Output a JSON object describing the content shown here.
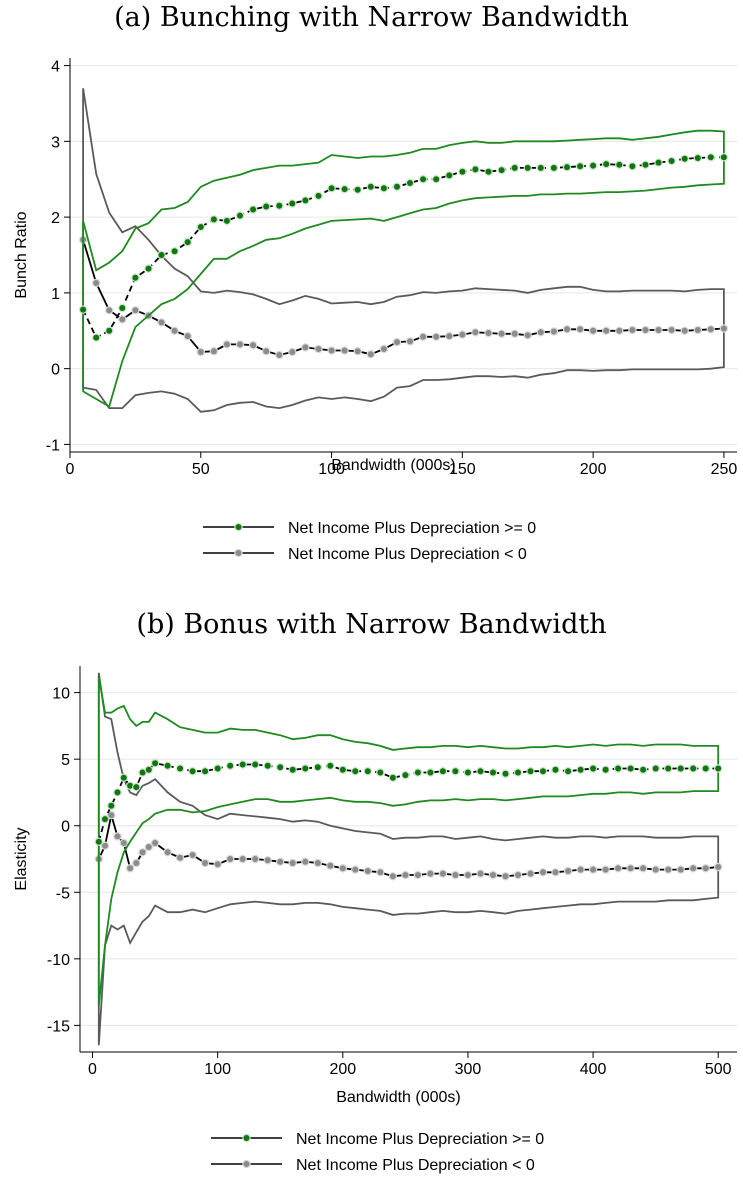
{
  "chart_data": [
    {
      "type": "line",
      "title": "(a) Bunching with Narrow Bandwidth",
      "xlabel": "Bandwidth (000s)",
      "ylabel": "Bunch Ratio",
      "xlim": [
        0,
        255
      ],
      "ylim": [
        -1.1,
        4.1
      ],
      "xticks": [
        "0",
        "50",
        "100",
        "150",
        "200",
        "250"
      ],
      "xtick_values": [
        0,
        50,
        100,
        150,
        200,
        250
      ],
      "yticks": [
        "-1",
        "0",
        "1",
        "2",
        "3",
        "4"
      ],
      "ytick_values": [
        -1,
        0,
        1,
        2,
        3,
        4
      ],
      "grid": true,
      "legend_position": "bottom",
      "colors": {
        "pos": "#1a7a1a",
        "neg": "#595959",
        "pos_marker": "#137413",
        "neg_marker": "#8c8c8c",
        "pos_band": "#1f8a1f",
        "neg_band": "#5a5a5a",
        "grid": "#e6e6e6"
      },
      "series": [
        {
          "name": "Net Income Plus Depreciation >= 0",
          "x": [
            5,
            10,
            15,
            20,
            25,
            30,
            35,
            40,
            45,
            50,
            55,
            60,
            65,
            70,
            75,
            80,
            85,
            90,
            95,
            100,
            105,
            110,
            115,
            120,
            125,
            130,
            135,
            140,
            145,
            150,
            155,
            160,
            165,
            170,
            175,
            180,
            185,
            190,
            195,
            200,
            205,
            210,
            215,
            220,
            225,
            230,
            235,
            240,
            245,
            250
          ],
          "y": [
            0.78,
            0.41,
            0.5,
            0.8,
            1.2,
            1.32,
            1.5,
            1.55,
            1.67,
            1.87,
            1.97,
            1.95,
            2.02,
            2.1,
            2.14,
            2.15,
            2.18,
            2.22,
            2.28,
            2.38,
            2.37,
            2.36,
            2.4,
            2.38,
            2.4,
            2.45,
            2.5,
            2.5,
            2.55,
            2.6,
            2.63,
            2.6,
            2.62,
            2.65,
            2.65,
            2.65,
            2.65,
            2.66,
            2.67,
            2.68,
            2.7,
            2.69,
            2.67,
            2.69,
            2.72,
            2.74,
            2.77,
            2.78,
            2.79,
            2.79
          ],
          "ci_lower": [
            -0.3,
            -0.4,
            -0.5,
            0.1,
            0.55,
            0.7,
            0.85,
            0.92,
            1.05,
            1.25,
            1.45,
            1.45,
            1.55,
            1.62,
            1.7,
            1.72,
            1.78,
            1.85,
            1.9,
            1.95,
            1.96,
            1.97,
            1.98,
            1.95,
            2.0,
            2.05,
            2.1,
            2.12,
            2.18,
            2.22,
            2.25,
            2.26,
            2.27,
            2.28,
            2.28,
            2.3,
            2.3,
            2.31,
            2.31,
            2.32,
            2.33,
            2.33,
            2.34,
            2.35,
            2.37,
            2.39,
            2.4,
            2.42,
            2.43,
            2.44
          ],
          "ci_upper": [
            1.95,
            1.3,
            1.4,
            1.55,
            1.85,
            1.92,
            2.1,
            2.12,
            2.2,
            2.4,
            2.48,
            2.52,
            2.56,
            2.62,
            2.65,
            2.68,
            2.68,
            2.7,
            2.72,
            2.82,
            2.8,
            2.78,
            2.8,
            2.8,
            2.82,
            2.85,
            2.9,
            2.9,
            2.95,
            2.98,
            3.0,
            2.98,
            2.98,
            3.0,
            3.0,
            3.0,
            3.0,
            3.01,
            3.02,
            3.03,
            3.04,
            3.04,
            3.02,
            3.04,
            3.06,
            3.09,
            3.12,
            3.14,
            3.14,
            3.13
          ]
        },
        {
          "name": "Net Income Plus Depreciation < 0",
          "x": [
            5,
            10,
            15,
            20,
            25,
            30,
            35,
            40,
            45,
            50,
            55,
            60,
            65,
            70,
            75,
            80,
            85,
            90,
            95,
            100,
            105,
            110,
            115,
            120,
            125,
            130,
            135,
            140,
            145,
            150,
            155,
            160,
            165,
            170,
            175,
            180,
            185,
            190,
            195,
            200,
            205,
            210,
            215,
            220,
            225,
            230,
            235,
            240,
            245,
            250
          ],
          "y": [
            1.7,
            1.13,
            0.77,
            0.65,
            0.77,
            0.7,
            0.61,
            0.5,
            0.43,
            0.22,
            0.23,
            0.32,
            0.32,
            0.31,
            0.23,
            0.18,
            0.22,
            0.28,
            0.26,
            0.24,
            0.24,
            0.23,
            0.19,
            0.26,
            0.35,
            0.36,
            0.42,
            0.42,
            0.43,
            0.45,
            0.48,
            0.47,
            0.46,
            0.46,
            0.44,
            0.48,
            0.49,
            0.52,
            0.52,
            0.5,
            0.5,
            0.5,
            0.51,
            0.51,
            0.51,
            0.51,
            0.5,
            0.51,
            0.52,
            0.53
          ],
          "ci_lower": [
            -0.25,
            -0.28,
            -0.52,
            -0.52,
            -0.35,
            -0.32,
            -0.3,
            -0.33,
            -0.4,
            -0.57,
            -0.55,
            -0.48,
            -0.45,
            -0.44,
            -0.5,
            -0.52,
            -0.48,
            -0.42,
            -0.38,
            -0.4,
            -0.38,
            -0.4,
            -0.43,
            -0.37,
            -0.25,
            -0.23,
            -0.15,
            -0.15,
            -0.14,
            -0.12,
            -0.1,
            -0.1,
            -0.11,
            -0.1,
            -0.12,
            -0.08,
            -0.06,
            -0.02,
            -0.02,
            -0.03,
            -0.02,
            -0.02,
            -0.01,
            -0.01,
            -0.01,
            -0.01,
            -0.01,
            -0.01,
            0.0,
            0.02
          ],
          "ci_upper": [
            3.7,
            2.57,
            2.06,
            1.8,
            1.88,
            1.7,
            1.49,
            1.32,
            1.22,
            1.02,
            1.0,
            1.03,
            1.01,
            0.98,
            0.92,
            0.85,
            0.9,
            0.96,
            0.92,
            0.86,
            0.87,
            0.88,
            0.85,
            0.88,
            0.95,
            0.97,
            1.01,
            1.0,
            1.02,
            1.03,
            1.06,
            1.05,
            1.04,
            1.03,
            1.0,
            1.04,
            1.06,
            1.08,
            1.08,
            1.04,
            1.02,
            1.02,
            1.03,
            1.03,
            1.03,
            1.03,
            1.02,
            1.04,
            1.05,
            1.05
          ]
        }
      ]
    },
    {
      "type": "line",
      "title": "(b) Bonus with Narrow Bandwidth",
      "xlabel": "Bandwidth (000s)",
      "ylabel": "Elasticity",
      "xlim": [
        -10,
        515
      ],
      "ylim": [
        -17,
        12
      ],
      "xticks": [
        "0",
        "100",
        "200",
        "300",
        "400",
        "500"
      ],
      "xtick_values": [
        0,
        100,
        200,
        300,
        400,
        500
      ],
      "yticks": [
        "-15",
        "-10",
        "-5",
        "0",
        "5",
        "10"
      ],
      "ytick_values": [
        -15,
        -10,
        -5,
        0,
        5,
        10
      ],
      "grid": true,
      "legend_position": "bottom",
      "colors": {
        "pos": "#1a7a1a",
        "neg": "#595959",
        "pos_marker": "#137413",
        "neg_marker": "#8c8c8c",
        "pos_band": "#1f8a1f",
        "neg_band": "#5a5a5a",
        "grid": "#e6e6e6"
      },
      "series": [
        {
          "name": "Net Income Plus Depreciation >= 0",
          "x": [
            5,
            10,
            15,
            20,
            25,
            30,
            35,
            40,
            45,
            50,
            60,
            70,
            80,
            90,
            100,
            110,
            120,
            130,
            140,
            150,
            160,
            170,
            180,
            190,
            200,
            210,
            220,
            230,
            240,
            250,
            260,
            270,
            280,
            290,
            300,
            310,
            320,
            330,
            340,
            350,
            360,
            370,
            380,
            390,
            400,
            410,
            420,
            430,
            440,
            450,
            460,
            470,
            480,
            490,
            500
          ],
          "y": [
            -1.2,
            0.5,
            1.5,
            2.5,
            3.6,
            3.0,
            2.9,
            4.0,
            4.2,
            4.7,
            4.5,
            4.3,
            4.1,
            4.1,
            4.3,
            4.5,
            4.6,
            4.6,
            4.5,
            4.4,
            4.2,
            4.3,
            4.4,
            4.5,
            4.2,
            4.1,
            4.1,
            4.0,
            3.6,
            3.8,
            4.0,
            4.0,
            4.1,
            4.1,
            4.0,
            4.1,
            4.0,
            3.9,
            4.0,
            4.1,
            4.1,
            4.2,
            4.1,
            4.2,
            4.3,
            4.2,
            4.3,
            4.3,
            4.2,
            4.3,
            4.3,
            4.3,
            4.3,
            4.3,
            4.3
          ],
          "ci_lower": [
            -13.5,
            -9.0,
            -5.5,
            -3.5,
            -2.0,
            -1.2,
            -0.5,
            0.2,
            0.5,
            0.9,
            1.2,
            1.2,
            1.0,
            1.1,
            1.4,
            1.6,
            1.8,
            2.0,
            2.0,
            1.8,
            1.8,
            1.9,
            2.0,
            2.1,
            1.9,
            1.8,
            1.8,
            1.7,
            1.5,
            1.6,
            1.8,
            1.9,
            1.9,
            2.0,
            1.9,
            2.0,
            2.0,
            1.9,
            2.0,
            2.1,
            2.2,
            2.2,
            2.2,
            2.3,
            2.4,
            2.4,
            2.5,
            2.5,
            2.4,
            2.5,
            2.5,
            2.5,
            2.6,
            2.6,
            2.6
          ],
          "ci_upper": [
            11.2,
            8.5,
            8.5,
            8.8,
            9.0,
            8.0,
            7.5,
            7.8,
            7.8,
            8.5,
            8.0,
            7.4,
            7.2,
            7.0,
            7.0,
            7.3,
            7.2,
            7.2,
            7.0,
            6.8,
            6.5,
            6.6,
            6.8,
            6.8,
            6.5,
            6.3,
            6.2,
            6.0,
            5.7,
            5.8,
            5.9,
            5.9,
            6.0,
            6.0,
            5.9,
            6.0,
            5.9,
            5.8,
            5.8,
            5.9,
            5.9,
            6.0,
            5.9,
            6.0,
            6.1,
            6.0,
            6.1,
            6.1,
            6.0,
            6.1,
            6.1,
            6.1,
            6.0,
            6.0,
            6.0
          ]
        },
        {
          "name": "Net Income Plus Depreciation < 0",
          "x": [
            5,
            10,
            15,
            20,
            25,
            30,
            35,
            40,
            45,
            50,
            60,
            70,
            80,
            90,
            100,
            110,
            120,
            130,
            140,
            150,
            160,
            170,
            180,
            190,
            200,
            210,
            220,
            230,
            240,
            250,
            260,
            270,
            280,
            290,
            300,
            310,
            320,
            330,
            340,
            350,
            360,
            370,
            380,
            390,
            400,
            410,
            420,
            430,
            440,
            450,
            460,
            470,
            480,
            490,
            500
          ],
          "y": [
            -2.5,
            -1.5,
            0.8,
            -0.8,
            -1.3,
            -3.2,
            -2.8,
            -2.0,
            -1.6,
            -1.3,
            -2.0,
            -2.4,
            -2.2,
            -2.8,
            -2.9,
            -2.5,
            -2.5,
            -2.5,
            -2.6,
            -2.7,
            -2.8,
            -2.7,
            -2.8,
            -3.0,
            -3.2,
            -3.3,
            -3.4,
            -3.5,
            -3.8,
            -3.7,
            -3.7,
            -3.6,
            -3.6,
            -3.7,
            -3.7,
            -3.6,
            -3.7,
            -3.8,
            -3.7,
            -3.6,
            -3.5,
            -3.5,
            -3.4,
            -3.3,
            -3.3,
            -3.3,
            -3.2,
            -3.2,
            -3.2,
            -3.3,
            -3.3,
            -3.3,
            -3.2,
            -3.2,
            -3.1
          ],
          "ci_lower": [
            -16.5,
            -9.0,
            -7.5,
            -7.8,
            -7.5,
            -8.8,
            -8.0,
            -7.2,
            -6.8,
            -6.0,
            -6.5,
            -6.5,
            -6.3,
            -6.5,
            -6.2,
            -5.9,
            -5.8,
            -5.7,
            -5.8,
            -5.9,
            -5.9,
            -5.8,
            -5.8,
            -5.9,
            -6.1,
            -6.2,
            -6.3,
            -6.4,
            -6.7,
            -6.6,
            -6.6,
            -6.5,
            -6.4,
            -6.5,
            -6.5,
            -6.4,
            -6.5,
            -6.6,
            -6.4,
            -6.3,
            -6.2,
            -6.1,
            -6.0,
            -5.9,
            -5.9,
            -5.8,
            -5.7,
            -5.7,
            -5.7,
            -5.7,
            -5.6,
            -5.6,
            -5.6,
            -5.5,
            -5.4
          ],
          "ci_upper": [
            11.5,
            8.2,
            8.0,
            5.5,
            3.5,
            2.5,
            2.3,
            3.0,
            3.2,
            3.5,
            2.5,
            1.8,
            1.5,
            0.8,
            0.5,
            0.9,
            0.8,
            0.7,
            0.6,
            0.5,
            0.3,
            0.4,
            0.3,
            0.0,
            -0.2,
            -0.4,
            -0.5,
            -0.6,
            -1.0,
            -0.9,
            -0.9,
            -0.8,
            -0.8,
            -1.0,
            -0.9,
            -0.8,
            -1.0,
            -1.1,
            -1.0,
            -0.9,
            -0.8,
            -0.9,
            -0.9,
            -0.8,
            -0.8,
            -0.9,
            -0.8,
            -0.8,
            -0.8,
            -0.9,
            -0.9,
            -0.9,
            -0.8,
            -0.8,
            -0.8
          ]
        }
      ]
    }
  ]
}
